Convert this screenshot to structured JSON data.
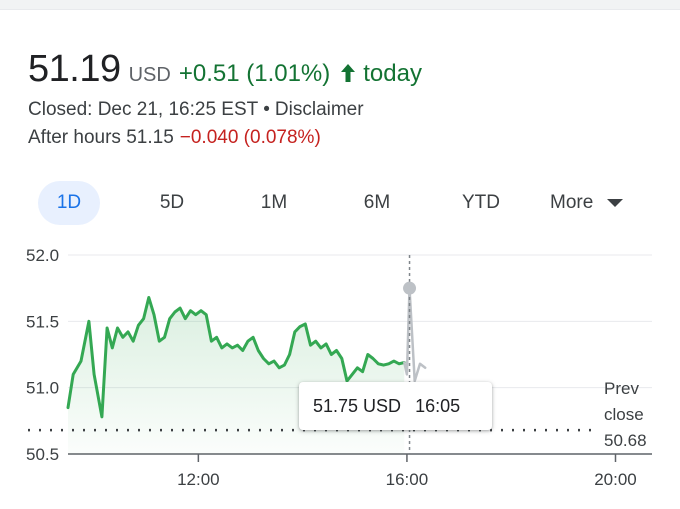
{
  "quote": {
    "price": "51.19",
    "currency": "USD",
    "change": "+0.51 (1.01%)",
    "arrow_icon": "arrow-up-icon",
    "period": "today",
    "positive_color": "#137333",
    "negative_color": "#c5221f"
  },
  "status": {
    "closed": "Closed: Dec 21, 16:25 EST",
    "separator": "•",
    "disclaimer": "Disclaimer"
  },
  "after_hours": {
    "label": "After hours 51.15",
    "change": "−0.040 (0.078%)"
  },
  "tabs": [
    {
      "label": "1D",
      "active": true
    },
    {
      "label": "5D",
      "active": false
    },
    {
      "label": "1M",
      "active": false
    },
    {
      "label": "6M",
      "active": false
    },
    {
      "label": "YTD",
      "active": false
    },
    {
      "label": "More",
      "active": false
    }
  ],
  "tooltip": {
    "value": "51.75 USD",
    "time": "16:05"
  },
  "prev_close": {
    "line1": "Prev",
    "line2": "close",
    "value": "50.68"
  },
  "chart_data": {
    "type": "line",
    "y_ticks": [
      "52.0",
      "51.5",
      "51.0",
      "50.5"
    ],
    "ylim": [
      50.5,
      52.0
    ],
    "x_ticks": [
      "12:00",
      "16:00",
      "20:00"
    ],
    "xlim": [
      9.5,
      20.7
    ],
    "prev_close": 50.68,
    "line_color": "#34a853",
    "after_hours_color": "#bdc1c6",
    "series": [
      {
        "session": "regular",
        "x": [
          9.5,
          9.6,
          9.75,
          9.9,
          10.0,
          10.15,
          10.25,
          10.35,
          10.45,
          10.55,
          10.65,
          10.75,
          10.85,
          10.95,
          11.05,
          11.15,
          11.25,
          11.35,
          11.45,
          11.55,
          11.65,
          11.75,
          11.85,
          11.95,
          12.05,
          12.15,
          12.25,
          12.35,
          12.45,
          12.55,
          12.65,
          12.75,
          12.85,
          12.95,
          13.05,
          13.15,
          13.25,
          13.35,
          13.45,
          13.55,
          13.65,
          13.75,
          13.85,
          13.95,
          14.05,
          14.15,
          14.25,
          14.35,
          14.45,
          14.55,
          14.65,
          14.75,
          14.85,
          14.95,
          15.05,
          15.15,
          15.25,
          15.35,
          15.45,
          15.55,
          15.65,
          15.75,
          15.85,
          15.95
        ],
        "y": [
          50.85,
          51.1,
          51.2,
          51.5,
          51.1,
          50.78,
          51.45,
          51.3,
          51.45,
          51.38,
          51.42,
          51.35,
          51.47,
          51.52,
          51.68,
          51.55,
          51.35,
          51.38,
          51.52,
          51.57,
          51.6,
          51.52,
          51.58,
          51.55,
          51.58,
          51.55,
          51.35,
          51.38,
          51.3,
          51.33,
          51.3,
          51.32,
          51.28,
          51.35,
          51.38,
          51.28,
          51.22,
          51.18,
          51.2,
          51.15,
          51.17,
          51.25,
          51.42,
          51.46,
          51.48,
          51.32,
          51.35,
          51.3,
          51.33,
          51.25,
          51.28,
          51.22,
          51.05,
          51.1,
          51.15,
          51.12,
          51.25,
          51.22,
          51.18,
          51.17,
          51.18,
          51.2,
          51.18,
          51.19
        ]
      },
      {
        "session": "after-hours",
        "x": [
          15.95,
          16.0,
          16.05,
          16.15,
          16.25,
          16.35
        ],
        "y": [
          51.19,
          51.1,
          51.75,
          51.05,
          51.18,
          51.15
        ]
      }
    ]
  }
}
